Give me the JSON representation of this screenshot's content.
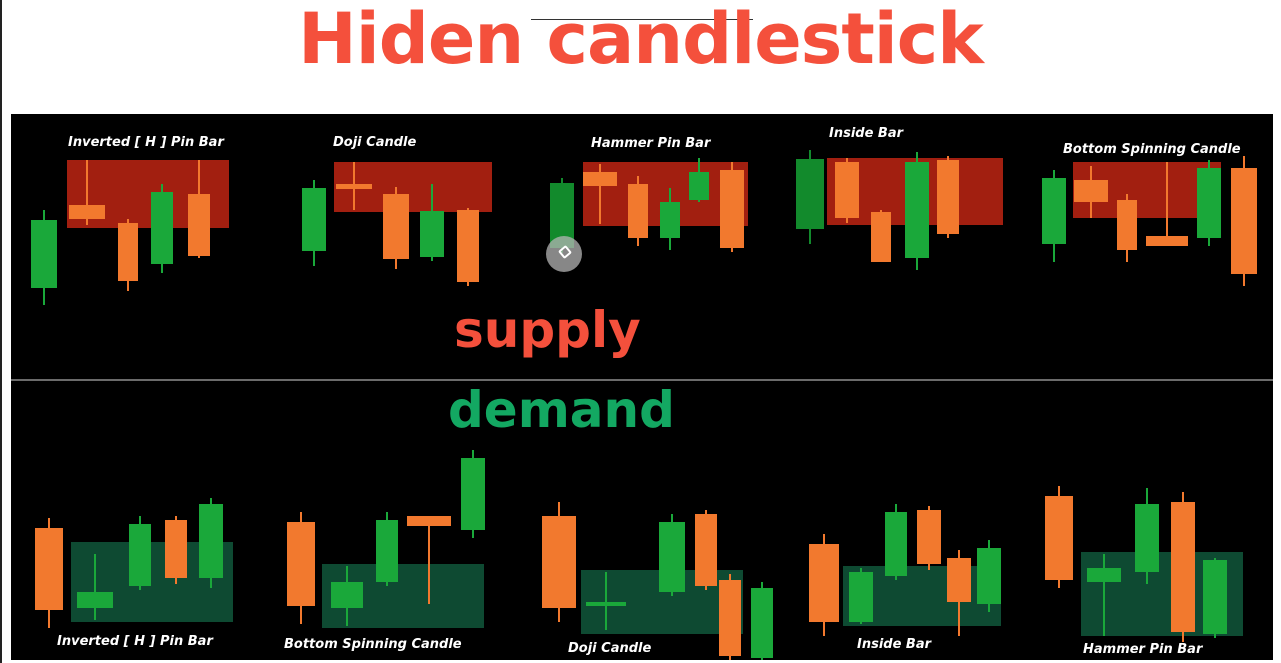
{
  "title": "Hiden candlestick",
  "supply_label": "supply",
  "demand_label": "demand",
  "top_patterns": [
    "Inverted [ H ] Pin Bar",
    "Doji Candle",
    "Hammer Pin Bar",
    "Inside Bar",
    "Bottom Spinning Candle"
  ],
  "bottom_patterns": [
    "Inverted [ H ] Pin Bar",
    "Bottom Spinning Candle",
    "Doji Candle",
    "Inside Bar",
    "Hammer Pin Bar"
  ],
  "colors": {
    "title": "#f4503c",
    "supply_zone": "#d02814",
    "demand_zone": "#167850",
    "bullish_candle": "#1aa83a",
    "bearish_candle": "#f2792e",
    "background": "#000000"
  }
}
